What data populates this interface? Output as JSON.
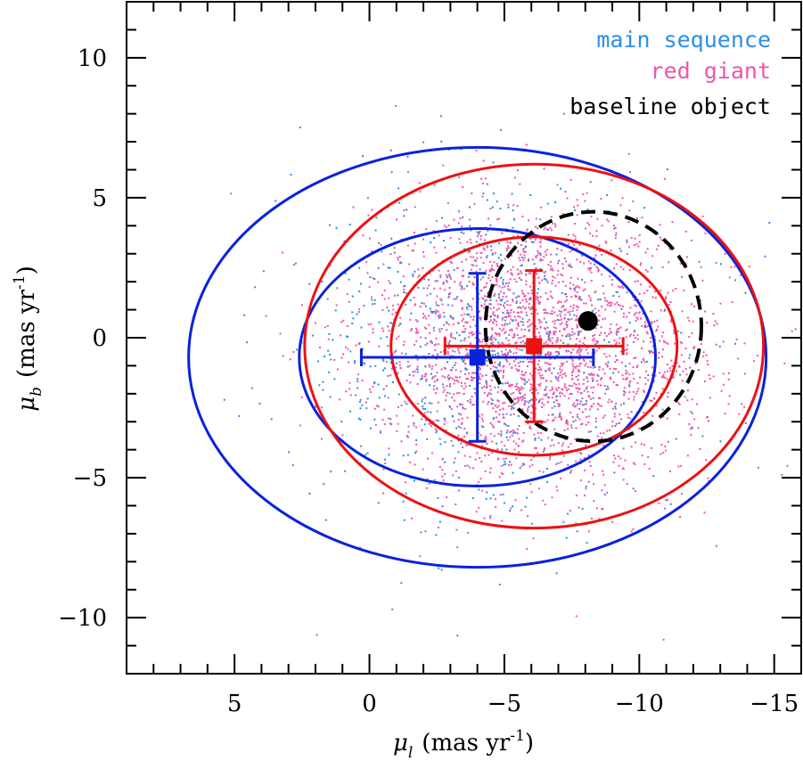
{
  "chart_data": {
    "type": "scatter",
    "title": "",
    "xlabel": {
      "symbol": "μ",
      "sub": "l",
      "units": "(mas yr",
      "exp": "-1",
      "close": ")"
    },
    "ylabel": {
      "symbol": "μ",
      "sub": "b",
      "units": "(mas yr",
      "exp": "-1",
      "close": ")"
    },
    "xlim": [
      9,
      -16
    ],
    "ylim": [
      -12,
      12
    ],
    "xticks": [
      5,
      0,
      -5,
      -10,
      -15
    ],
    "xtick_labels": [
      "5",
      "0",
      "−5",
      "−10",
      "−15"
    ],
    "yticks": [
      10,
      5,
      0,
      -5,
      -10
    ],
    "ytick_labels": [
      "10",
      "5",
      "0",
      "−5",
      "−10"
    ],
    "legend_position": "top-right",
    "legend": [
      {
        "label": "main sequence",
        "color": "#2a8ee8"
      },
      {
        "label": "red giant",
        "color": "#ee55aa"
      },
      {
        "label": "baseline object",
        "color": "#000000"
      }
    ],
    "series": [
      {
        "name": "main sequence",
        "color": "#2a8ee8",
        "scatter_cloud": {
          "center": [
            -4.0,
            -0.7
          ],
          "sd": [
            3.6,
            2.9
          ],
          "count": 700
        },
        "mean": {
          "x": -4.0,
          "y": -0.7,
          "xerr": 4.3,
          "yerr": 3.0,
          "marker_color": "#0a22dd"
        },
        "ellipses": [
          {
            "center": [
              -4.0,
              -0.7
            ],
            "rx": 6.6,
            "ry": 4.6,
            "color": "#0a22dd"
          },
          {
            "center": [
              -4.0,
              -0.7
            ],
            "rx": 10.7,
            "ry": 7.5,
            "color": "#0a22dd"
          }
        ]
      },
      {
        "name": "red giant",
        "color": "#ee55aa",
        "scatter_cloud": {
          "center": [
            -6.1,
            -0.3
          ],
          "sd": [
            3.1,
            2.5
          ],
          "count": 2600
        },
        "mean": {
          "x": -6.1,
          "y": -0.3,
          "xerr": 3.3,
          "yerr": 2.7,
          "marker_color": "#ee1111"
        },
        "ellipses": [
          {
            "center": [
              -6.1,
              -0.3
            ],
            "rx": 5.3,
            "ry": 3.9,
            "color": "#ee1111"
          },
          {
            "center": [
              -6.1,
              -0.3
            ],
            "rx": 8.5,
            "ry": 6.5,
            "color": "#ee1111"
          }
        ]
      },
      {
        "name": "baseline object",
        "color": "#000000",
        "point": {
          "x": -8.1,
          "y": 0.6
        },
        "ellipse": {
          "center": [
            -8.3,
            0.4
          ],
          "rx": 4.0,
          "ry": 4.1,
          "dashed": true
        }
      }
    ]
  }
}
